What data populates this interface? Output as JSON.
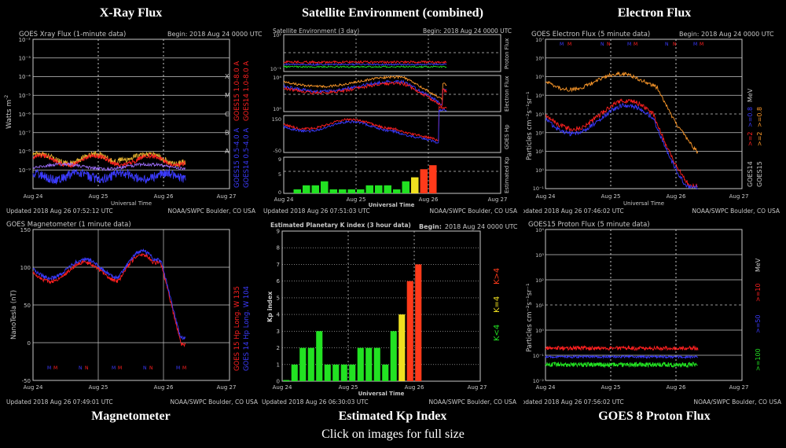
{
  "titles": {
    "xray": "X-Ray Flux",
    "satenv": "Satellite Environment (combined)",
    "electron": "Electron Flux",
    "mag": "Magnetometer",
    "kp": "Estimated Kp Index",
    "proton": "GOES 8 Proton Flux"
  },
  "footer": "Click on images for full size",
  "common": {
    "dates": [
      "Aug 24",
      "Aug 25",
      "Aug 26",
      "Aug 27"
    ],
    "xlabel": "Universal Time",
    "noaa": "NOAA/SWPC Boulder, CO USA",
    "begin": "Begin:  2018 Aug 24 0000 UTC"
  },
  "panels": {
    "xray": {
      "header": "GOES Xray Flux (1-minute data)",
      "ylabel": "Watts m",
      "ylabel_sup": "-2",
      "yticks": [
        "10⁻²",
        "10⁻³",
        "10⁻⁴",
        "10⁻⁵",
        "10⁻⁶",
        "10⁻⁷",
        "10⁻⁸",
        "10⁻⁹"
      ],
      "classes": [
        "X",
        "M",
        "C",
        "B",
        "A"
      ],
      "legend": [
        {
          "text": "GOES15 1.0-8.0 A",
          "color": "#ff2020"
        },
        {
          "text": "GOES14 1.0-8.0 A",
          "color": "#ff2020"
        },
        {
          "text": "GOES15 0.5-4.0 A",
          "color": "#3b3bff"
        },
        {
          "text": "GOES14 0.5-4.0 A",
          "color": "#3b3bff"
        }
      ],
      "updated": "Updated 2018 Aug 26 07:52:12 UTC"
    },
    "satenv": {
      "header": "Satellite Environment (3 day)",
      "right_labels": [
        "Proton Flux",
        "Electron Flux",
        "GOES Hp",
        "Estimated Kp"
      ],
      "hp_ticks": [
        "150",
        "-50"
      ],
      "kp_ticks": [
        "9",
        "5",
        "0"
      ],
      "updated": "Updated 2018 Aug 26 07:51:03 UTC"
    },
    "electron": {
      "header": "GOES Electron Flux (5 minute data)",
      "ylabel": "Particles cm⁻²s⁻¹sr⁻¹",
      "yticks": [
        "10⁷",
        "10⁶",
        "10⁵",
        "10⁴",
        "10³",
        "10²",
        "10¹",
        "10⁰",
        "10⁻¹"
      ],
      "legend": [
        {
          "text": "MeV",
          "color": "#c8c8c8"
        },
        {
          "text": ">=0.8",
          "color": "#3b3bff"
        },
        {
          "text": ">=2",
          "color": "#ff2020"
        },
        {
          "text": ">=0.8",
          "color": "#ff9a2a"
        },
        {
          "text": ">=2",
          "color": "#ff9a2a"
        },
        {
          "text": "GOES14",
          "color": "#c8c8c8"
        },
        {
          "text": "GOES15",
          "color": "#c8c8c8"
        }
      ],
      "updated": "Updated 2018 Aug 26 07:46:02 UTC"
    },
    "mag": {
      "header": "GOES Magnetometer (1 minute data)",
      "ylabel": "NanoTesla (nT)",
      "yticks": [
        "150",
        "100",
        "50",
        "0",
        "-50"
      ],
      "legend": [
        {
          "text": "GOES 15 Hp   Long. W 135",
          "color": "#ff2020"
        },
        {
          "text": "GOES 14 Hp   Long. W 104",
          "color": "#3b3bff"
        }
      ],
      "updated": "Updated 2018 Aug 26 07:49:01 UTC"
    },
    "kp": {
      "header": "Estimated Planetary K index (3 hour data)",
      "begin": "Begin:  2018 Aug 24 0000 UTC",
      "ylabel": "Kp index",
      "legend": [
        {
          "text": "K<4",
          "color": "#22e222"
        },
        {
          "text": "K=4",
          "color": "#f0e020"
        },
        {
          "text": "K>4",
          "color": "#ff3a1a"
        }
      ],
      "updated": "Updated 2018 Aug 26 06:30:03 UTC"
    },
    "proton": {
      "header": "GOES15 Proton Flux (5 minute data)",
      "ylabel": "Particles cm⁻²s⁻¹sr⁻¹",
      "yticks": [
        "10⁴",
        "10³",
        "10²",
        "10¹",
        "10⁰",
        "10⁻¹",
        "10⁻²"
      ],
      "legend": [
        {
          "text": "MeV",
          "color": "#c8c8c8"
        },
        {
          "text": ">=10",
          "color": "#ff2020"
        },
        {
          "text": ">=50",
          "color": "#3b3bff"
        },
        {
          "text": ">=100",
          "color": "#22e222"
        }
      ],
      "updated": "Updated 2018 Aug 26 07:56:02 UTC"
    }
  },
  "colors": {
    "green": "#22e222",
    "yellow": "#f0e020",
    "red": "#ff3a1a",
    "blue": "#3b3bff",
    "redline": "#ff2020",
    "orange": "#ff9a2a"
  },
  "chart_data": [
    {
      "type": "bar",
      "id": "kp",
      "title": "Estimated Planetary K index (3 hour data)",
      "ylabel": "Kp index",
      "xlabel": "Universal Time",
      "ylim": [
        0,
        9
      ],
      "yticks": [
        "0",
        "1",
        "2",
        "3",
        "4",
        "5",
        "6",
        "7",
        "8",
        "9"
      ],
      "values": [
        0,
        1,
        2,
        2,
        3,
        1,
        1,
        1,
        1,
        2,
        2,
        2,
        1,
        3,
        4,
        6,
        7
      ],
      "xticks": [
        "Aug 24",
        "Aug 25",
        "Aug 26",
        "Aug 27"
      ]
    }
  ]
}
